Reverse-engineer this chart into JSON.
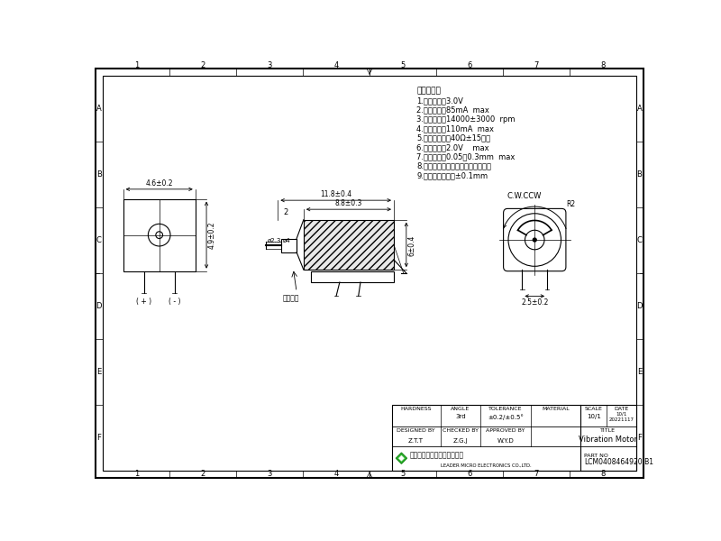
{
  "bg_color": "#ffffff",
  "line_color": "#000000",
  "title": "Vibration Motor",
  "part_no": "LCM0408464920-B1",
  "tech_requirements": [
    "技术要求：",
    "1.额定电压：3.0V",
    "2.额定电流：85mA  max",
    "3.额定转速：14000±3000  rpm",
    "4.堵转电流：110mA  max",
    "5.端子际抗：（40Ω±15％）",
    "6.启动电压：2.0V    max",
    "7.轴向间隙：0.05～0.3mm  max",
    "8.如图所示轴向尺寸不包含轴向间隙",
    "9.未注公差尺寸为±0.1mm"
  ],
  "company_cn": "立得微电子（惠州）有限公司",
  "company_en": "LEADER MICRO ELECTRONICS CO.,LTD.",
  "grid_labels_x": [
    "1",
    "2",
    "3",
    "4",
    "5",
    "6",
    "7",
    "8"
  ],
  "grid_labels_y": [
    "A",
    "B",
    "C",
    "D",
    "E",
    "F"
  ],
  "hei_se_jiao_tao": "黑色胶套",
  "cw_ccw": "C.W.CCW"
}
